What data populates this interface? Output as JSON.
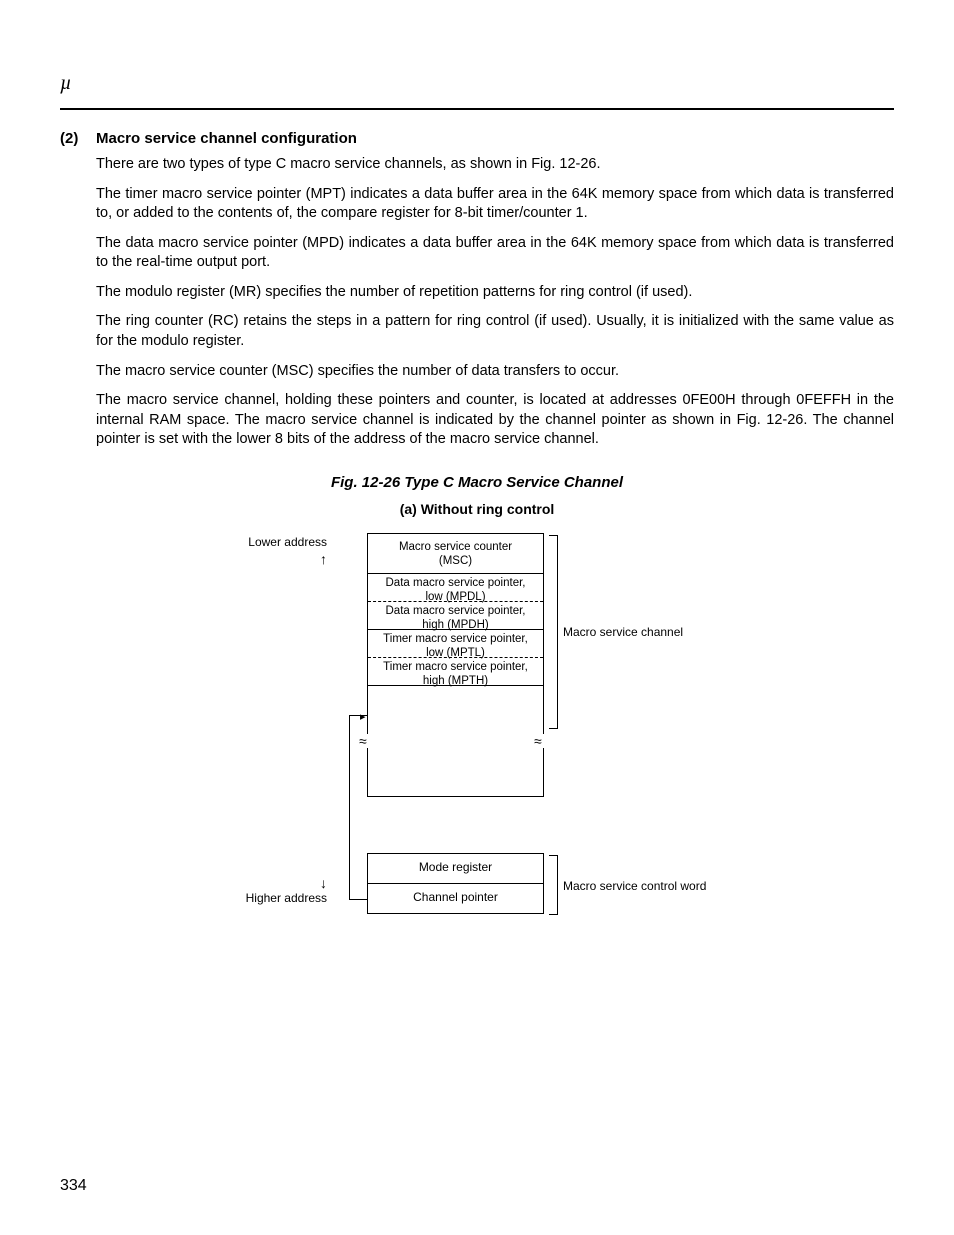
{
  "header": {
    "mu": "µ"
  },
  "section": {
    "num": "(2)",
    "title": "Macro service channel configuration",
    "paragraphs": [
      "There are two types of type C macro service channels, as shown in Fig. 12-26.",
      "The timer macro service pointer (MPT) indicates a data buffer area in the 64K memory space from which data is transferred to, or added to the contents of, the compare register for 8-bit timer/counter 1.",
      "The data macro service pointer (MPD) indicates a data buffer area in the 64K memory space from which data is transferred to the real-time output port.",
      "The modulo register (MR) specifies the number of repetition patterns for ring control (if used).",
      "The ring counter (RC) retains the steps in a pattern for ring control (if used).  Usually, it is initialized with the same value as for the modulo register.",
      "The macro service counter (MSC) specifies the number of data transfers to occur.",
      "The macro service channel, holding these pointers and counter, is located at addresses 0FE00H through 0FEFFH in the internal RAM space.  The macro service channel is indicated by the channel pointer as shown in Fig. 12-26.  The channel pointer is set with the lower 8 bits of the address of the macro service channel."
    ]
  },
  "figure": {
    "title": "Fig. 12-26  Type C Macro Service Channel",
    "subtitle": "(a)  Without ring control",
    "lower_addr": "Lower address",
    "higher_addr": "Higher address",
    "arrow_up": "↑",
    "arrow_down": "↓",
    "cells": {
      "msc1": "Macro service counter",
      "msc2": "(MSC)",
      "mpdl1": "Data macro service pointer,",
      "mpdl2": "low (MPDL)",
      "mpdh1": "Data macro service pointer,",
      "mpdh2": "high (MPDH)",
      "mptl1": "Timer macro service pointer,",
      "mptl2": "low (MPTL)",
      "mpth1": "Timer macro service pointer,",
      "mpth2": "high (MPTH)",
      "mode": "Mode register",
      "chptr": "Channel pointer"
    },
    "labels": {
      "brace1": "Macro service channel",
      "brace2": "Macro service control word"
    },
    "wave": "≈"
  },
  "page_number": "334"
}
